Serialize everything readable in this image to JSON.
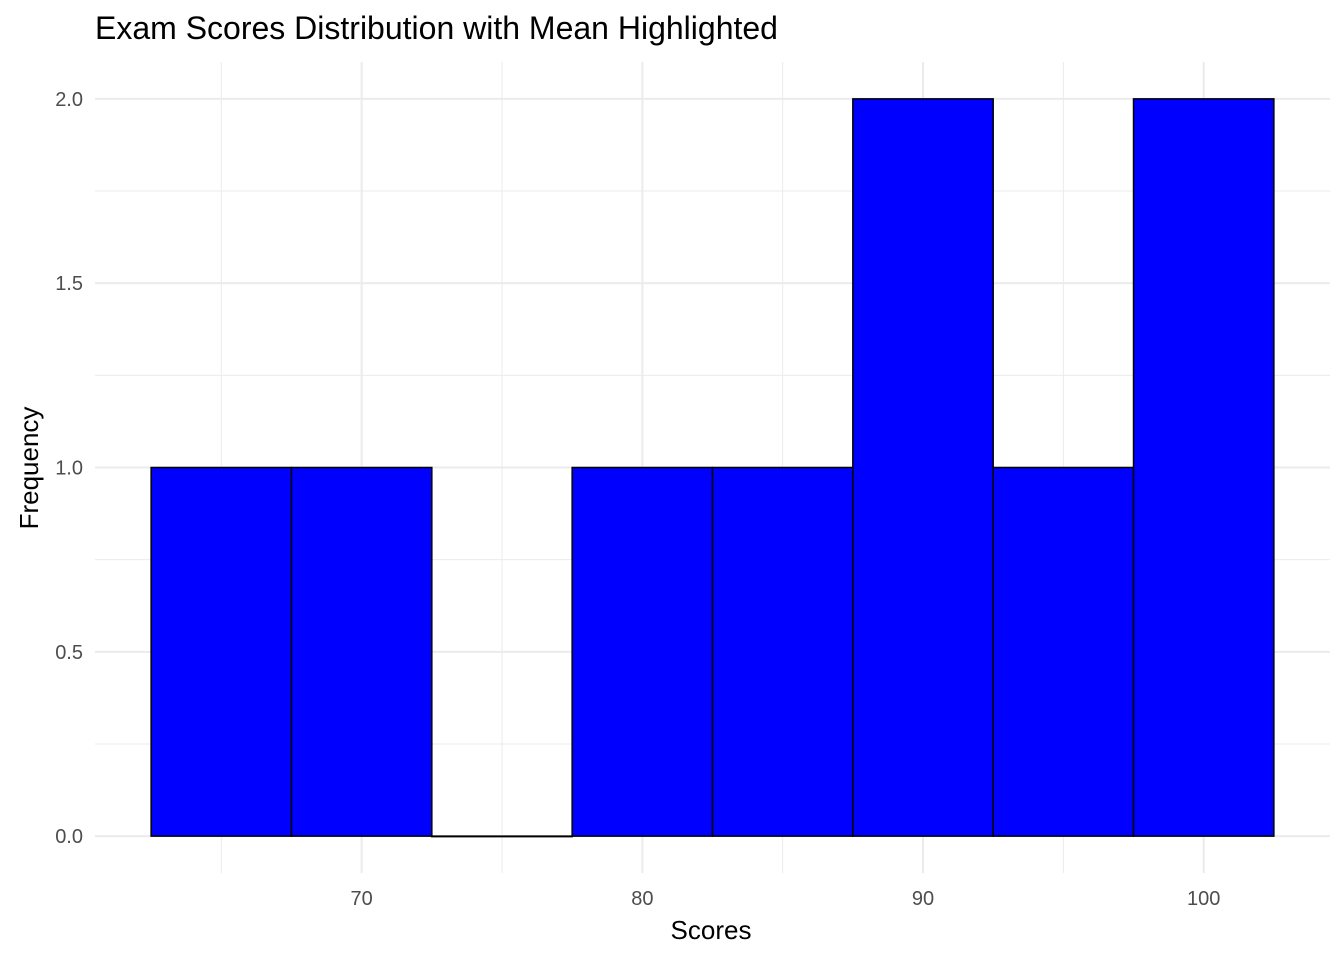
{
  "chart_data": {
    "type": "bar",
    "title": "Exam Scores Distribution with Mean Highlighted",
    "xlabel": "Scores",
    "ylabel": "Frequency",
    "bin_width": 5,
    "bins": [
      {
        "start": 62.5,
        "end": 67.5,
        "count": 1
      },
      {
        "start": 67.5,
        "end": 72.5,
        "count": 1
      },
      {
        "start": 72.5,
        "end": 77.5,
        "count": 0
      },
      {
        "start": 77.5,
        "end": 82.5,
        "count": 1
      },
      {
        "start": 82.5,
        "end": 87.5,
        "count": 1
      },
      {
        "start": 87.5,
        "end": 92.5,
        "count": 2
      },
      {
        "start": 92.5,
        "end": 97.5,
        "count": 1
      },
      {
        "start": 97.5,
        "end": 102.5,
        "count": 2
      }
    ],
    "xlim": [
      60.5,
      104.5
    ],
    "ylim": [
      -0.1,
      2.1
    ],
    "x_ticks": [
      70,
      80,
      90,
      100
    ],
    "x_tick_labels": [
      "70",
      "80",
      "90",
      "100"
    ],
    "y_ticks": [
      0,
      0.5,
      1,
      1.5,
      2
    ],
    "y_tick_labels": [
      "0.0",
      "0.5",
      "1.0",
      "1.5",
      "2.0"
    ],
    "grid": true,
    "colors": {
      "bar_fill": "#0000ff",
      "bar_outline": "#000000",
      "grid": "#ebebeb"
    }
  }
}
